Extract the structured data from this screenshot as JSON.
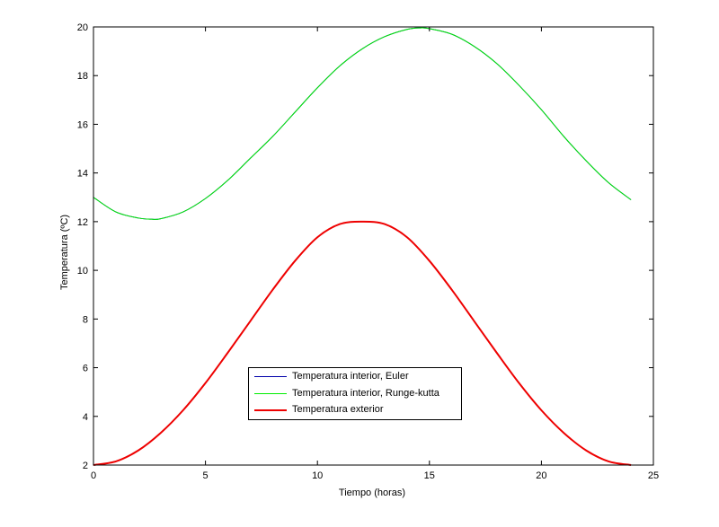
{
  "chart_data": {
    "type": "line",
    "title": "",
    "xlabel": "Tiempo (horas)",
    "ylabel": "Temperatura (ºC)",
    "xlim": [
      0,
      25
    ],
    "ylim": [
      2,
      20
    ],
    "xticks": [
      0,
      5,
      10,
      15,
      20,
      25
    ],
    "yticks": [
      2,
      4,
      6,
      8,
      10,
      12,
      14,
      16,
      18,
      20
    ],
    "grid": false,
    "legend_position": "center-bottom",
    "series": [
      {
        "name": "Temperatura interior, Euler",
        "color": "#0000aa",
        "x": [
          0,
          1,
          2,
          2.6,
          3,
          4,
          5,
          6,
          7,
          8,
          9,
          10,
          11,
          12,
          13,
          14,
          14.6,
          15,
          16,
          17,
          18,
          19,
          20,
          21,
          22,
          23,
          24
        ],
        "y": [
          13.0,
          12.4,
          12.15,
          12.1,
          12.12,
          12.4,
          12.95,
          13.7,
          14.6,
          15.5,
          16.5,
          17.5,
          18.4,
          19.1,
          19.6,
          19.9,
          19.96,
          19.93,
          19.7,
          19.2,
          18.5,
          17.6,
          16.6,
          15.5,
          14.5,
          13.6,
          12.9
        ]
      },
      {
        "name": "Temperatura interior, Runge-kutta",
        "color": "#00ee00",
        "x": [
          0,
          1,
          2,
          2.6,
          3,
          4,
          5,
          6,
          7,
          8,
          9,
          10,
          11,
          12,
          13,
          14,
          14.6,
          15,
          16,
          17,
          18,
          19,
          20,
          21,
          22,
          23,
          24
        ],
        "y": [
          13.0,
          12.4,
          12.15,
          12.1,
          12.12,
          12.4,
          12.95,
          13.7,
          14.6,
          15.5,
          16.5,
          17.5,
          18.4,
          19.1,
          19.6,
          19.9,
          19.96,
          19.93,
          19.7,
          19.2,
          18.5,
          17.6,
          16.6,
          15.5,
          14.5,
          13.6,
          12.9
        ]
      },
      {
        "name": "Temperatura exterior",
        "color": "#ee0000",
        "x": [
          0,
          1,
          2,
          3,
          4,
          5,
          6,
          7,
          8,
          9,
          10,
          11,
          12,
          13,
          14,
          15,
          16,
          17,
          18,
          19,
          20,
          21,
          22,
          23,
          24
        ],
        "y": [
          2.0,
          2.15,
          2.6,
          3.32,
          4.25,
          5.37,
          6.62,
          7.91,
          9.2,
          10.39,
          11.36,
          11.9,
          12.0,
          11.9,
          11.36,
          10.39,
          9.2,
          7.91,
          6.62,
          5.37,
          4.25,
          3.32,
          2.6,
          2.15,
          2.0
        ]
      }
    ]
  }
}
